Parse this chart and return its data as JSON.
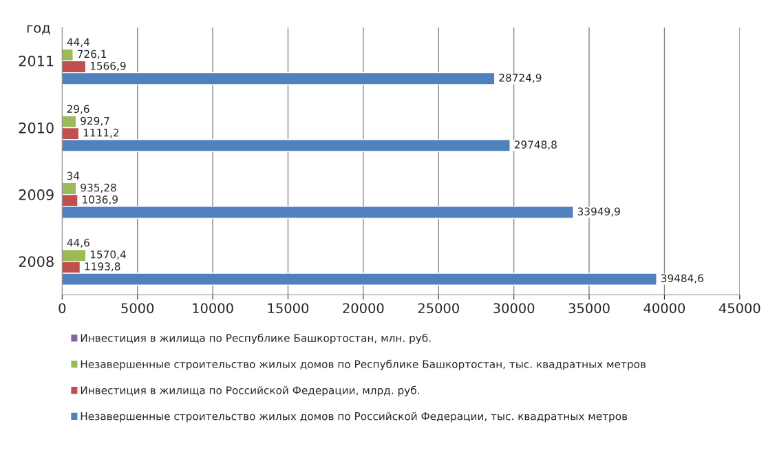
{
  "chart_data": {
    "type": "bar",
    "orientation": "horizontal",
    "ylabel": "год",
    "categories": [
      "2011",
      "2010",
      "2009",
      "2008"
    ],
    "series": [
      {
        "name": "Инвестиция в жилища по Республике Башкортостан, млн. руб.",
        "color": "#8064a2",
        "values": [
          44.4,
          29.6,
          34,
          44.6
        ],
        "value_labels": [
          "44,4",
          "29,6",
          "34",
          "44,6"
        ]
      },
      {
        "name": "Незавершенные строительство жилых домов по Республике Башкортостан, тыс. квадратных метров",
        "color": "#9bbb59",
        "values": [
          726.1,
          929.7,
          935.28,
          1570.4
        ],
        "value_labels": [
          "726,1",
          "929,7",
          "935,28",
          "1570,4"
        ]
      },
      {
        "name": "Инвестиция в жилища по Российской Федерации, млрд. руб.",
        "color": "#c0504d",
        "values": [
          1566.9,
          1111.2,
          1036.9,
          1193.8
        ],
        "value_labels": [
          "1566,9",
          "1111,2",
          "1036,9",
          "1193,8"
        ]
      },
      {
        "name": "Незавершенные строительство жилых домов по Российской Федерации, тыс. квадратных метров",
        "color": "#4f81bd",
        "values": [
          28724.9,
          29748.8,
          33949.9,
          39484.6
        ],
        "value_labels": [
          "28724,9",
          "29748,8",
          "33949,9",
          "39484,6"
        ]
      }
    ],
    "xlim": [
      0,
      45000
    ],
    "xticks": [
      0,
      5000,
      10000,
      15000,
      20000,
      25000,
      30000,
      35000,
      40000,
      45000
    ],
    "grid": "x",
    "legend": "bottom"
  }
}
